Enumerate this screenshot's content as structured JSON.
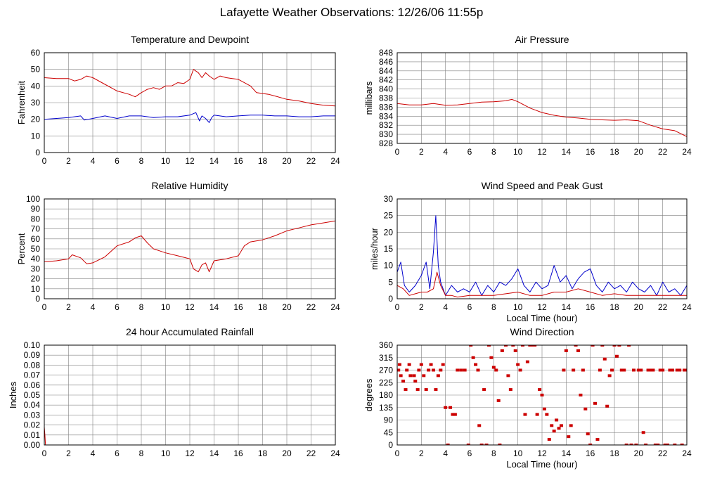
{
  "page": {
    "title": "Lafayette Weather Observations: 12/26/06 11:55p"
  },
  "colors": {
    "grid": "#808080",
    "frame": "#000000",
    "series_red": "#cc0000",
    "series_blue": "#0000cc"
  },
  "chart_data": [
    {
      "id": "temp",
      "type": "line",
      "title": "Temperature and Dewpoint",
      "xlabel": "",
      "ylabel": "Fahrenheit",
      "xlim": [
        0,
        24
      ],
      "ylim": [
        0,
        60
      ],
      "xticks": [
        0,
        2,
        4,
        6,
        8,
        10,
        12,
        14,
        16,
        18,
        20,
        22,
        24
      ],
      "yticks": [
        0,
        10,
        20,
        30,
        40,
        50,
        60
      ],
      "grid": true,
      "series": [
        {
          "color": "#cc0000",
          "x": [
            0,
            1,
            2,
            2.5,
            3,
            3.5,
            4,
            5,
            6,
            7,
            7.5,
            8,
            8.5,
            9,
            9.5,
            10,
            10.5,
            11,
            11.5,
            12,
            12.3,
            12.7,
            13,
            13.3,
            13.6,
            14,
            14.5,
            15,
            15.5,
            16,
            17,
            17.5,
            18,
            18.5,
            19,
            20,
            21,
            22,
            23,
            24
          ],
          "y": [
            45,
            44.5,
            44.5,
            43,
            44,
            46,
            45,
            41,
            37,
            35,
            33.5,
            36,
            38,
            39,
            38,
            40,
            40,
            42,
            41.5,
            44,
            50,
            48,
            45,
            48,
            46,
            44,
            46,
            45,
            44.5,
            44,
            40,
            36,
            35.5,
            35,
            34,
            32,
            31,
            29.5,
            28.5,
            28
          ]
        },
        {
          "color": "#0000cc",
          "x": [
            0,
            1,
            2,
            3,
            3.3,
            4,
            5,
            6,
            7,
            8,
            9,
            10,
            11,
            12,
            12.5,
            12.8,
            13,
            13.3,
            13.6,
            13.8,
            14,
            15,
            16,
            17,
            18,
            19,
            20,
            21,
            22,
            23,
            24
          ],
          "y": [
            20,
            20.5,
            21,
            22,
            19.5,
            20.5,
            22,
            20.5,
            22,
            22,
            21,
            21.5,
            21.5,
            22.5,
            24,
            19,
            22,
            20.5,
            18,
            21,
            22.5,
            21.5,
            22,
            22.5,
            22.5,
            22,
            22,
            21.5,
            21.5,
            22,
            22
          ]
        }
      ]
    },
    {
      "id": "pressure",
      "type": "line",
      "title": "Air Pressure",
      "xlabel": "",
      "ylabel": "millibars",
      "xlim": [
        0,
        24
      ],
      "ylim": [
        828,
        848
      ],
      "xticks": [
        0,
        2,
        4,
        6,
        8,
        10,
        12,
        14,
        16,
        18,
        20,
        22,
        24
      ],
      "yticks": [
        828,
        830,
        832,
        834,
        836,
        838,
        840,
        842,
        844,
        846,
        848
      ],
      "grid": true,
      "series": [
        {
          "color": "#cc0000",
          "x": [
            0,
            1,
            2,
            3,
            4,
            5,
            6,
            7,
            8,
            9,
            9.5,
            10,
            11,
            12,
            13,
            14,
            15,
            16,
            17,
            18,
            19,
            20,
            21,
            22,
            23,
            24
          ],
          "y": [
            836.8,
            836.5,
            836.5,
            836.8,
            836.4,
            836.5,
            836.8,
            837.1,
            837.2,
            837.4,
            837.7,
            837.2,
            835.8,
            834.8,
            834.2,
            833.8,
            833.6,
            833.3,
            833.2,
            833.1,
            833.2,
            833.0,
            832.0,
            831.2,
            830.8,
            829.5
          ]
        }
      ]
    },
    {
      "id": "humidity",
      "type": "line",
      "title": "Relative Humidity",
      "xlabel": "",
      "ylabel": "Percent",
      "xlim": [
        0,
        24
      ],
      "ylim": [
        0,
        100
      ],
      "xticks": [
        0,
        2,
        4,
        6,
        8,
        10,
        12,
        14,
        16,
        18,
        20,
        22,
        24
      ],
      "yticks": [
        0,
        10,
        20,
        30,
        40,
        50,
        60,
        70,
        80,
        90,
        100
      ],
      "grid": true,
      "series": [
        {
          "color": "#cc0000",
          "x": [
            0,
            1,
            2,
            2.3,
            3,
            3.5,
            4,
            5,
            6,
            7,
            7.5,
            8,
            8.5,
            9,
            9.5,
            10,
            11,
            12,
            12.3,
            12.7,
            13,
            13.3,
            13.6,
            14,
            15,
            16,
            16.5,
            17,
            18,
            19,
            20,
            21,
            22,
            23,
            24
          ],
          "y": [
            37,
            38,
            40,
            44,
            41,
            35,
            36,
            42,
            53,
            57,
            61,
            63,
            56,
            50,
            48,
            46,
            43,
            40,
            30,
            27,
            34,
            36,
            27,
            38,
            40,
            43,
            53,
            57,
            59,
            63,
            68,
            71,
            74,
            76,
            78
          ]
        }
      ]
    },
    {
      "id": "wind",
      "type": "line",
      "title": "Wind Speed and Peak Gust",
      "xlabel": "Local Time (hour)",
      "ylabel": "miles/hour",
      "xlim": [
        0,
        24
      ],
      "ylim": [
        0,
        30
      ],
      "xticks": [
        0,
        2,
        4,
        6,
        8,
        10,
        12,
        14,
        16,
        18,
        20,
        22,
        24
      ],
      "yticks": [
        0,
        5,
        10,
        15,
        20,
        25,
        30
      ],
      "grid": true,
      "series": [
        {
          "color": "#0000cc",
          "x": [
            0,
            0.3,
            0.6,
            1,
            1.5,
            2,
            2.4,
            2.7,
            3,
            3.2,
            3.4,
            3.6,
            4,
            4.5,
            5,
            5.5,
            6,
            6.5,
            7,
            7.5,
            8,
            8.5,
            9,
            9.5,
            10,
            10.5,
            11,
            11.5,
            12,
            12.5,
            13,
            13.5,
            14,
            14.5,
            15,
            15.5,
            16,
            16.5,
            17,
            17.5,
            18,
            18.5,
            19,
            19.5,
            20,
            20.5,
            21,
            21.5,
            22,
            22.5,
            23,
            23.5,
            24
          ],
          "y": [
            8,
            11,
            4,
            2,
            4,
            7,
            11,
            3,
            14,
            25,
            10,
            5,
            1,
            4,
            2,
            3,
            2,
            5,
            1,
            4,
            2,
            5,
            4,
            6,
            9,
            4,
            2,
            5,
            3,
            4,
            10,
            5,
            7,
            3,
            6,
            8,
            9,
            4,
            2,
            5,
            3,
            4,
            2,
            5,
            3,
            2,
            4,
            1,
            5,
            2,
            3,
            1,
            4
          ]
        },
        {
          "color": "#cc0000",
          "x": [
            0,
            0.5,
            1,
            1.5,
            2,
            2.5,
            3,
            3.3,
            3.6,
            4,
            4.5,
            5,
            6,
            7,
            8,
            9,
            10,
            11,
            12,
            13,
            14,
            15,
            16,
            17,
            18,
            19,
            20,
            21,
            22,
            23,
            24
          ],
          "y": [
            4,
            3,
            1,
            1.5,
            2,
            2,
            3,
            8,
            4,
            1,
            1,
            0.5,
            1,
            1,
            1,
            1.5,
            2,
            1,
            1,
            2,
            2,
            3,
            2,
            1,
            1.5,
            1,
            1,
            1,
            1,
            1,
            1
          ]
        }
      ]
    },
    {
      "id": "rain",
      "type": "line",
      "title": "24 hour Accumulated Rainfall",
      "xlabel": "",
      "ylabel": "Inches",
      "xlim": [
        0,
        24
      ],
      "ylim": [
        0,
        0.1
      ],
      "xticks": [
        0,
        2,
        4,
        6,
        8,
        10,
        12,
        14,
        16,
        18,
        20,
        22,
        24
      ],
      "yticks": [
        "0.00",
        "0.01",
        "0.02",
        "0.03",
        "0.04",
        "0.05",
        "0.06",
        "0.07",
        "0.08",
        "0.09",
        "0.10"
      ],
      "grid": true,
      "series": [
        {
          "color": "#cc0000",
          "x": [
            0,
            0.05,
            0.1,
            24
          ],
          "y": [
            0.018,
            0.01,
            0,
            0
          ]
        }
      ]
    },
    {
      "id": "direction",
      "type": "scatter",
      "title": "Wind Direction",
      "xlabel": "Local Time (hour)",
      "ylabel": "degrees",
      "xlim": [
        0,
        24
      ],
      "ylim": [
        0,
        360
      ],
      "xticks": [
        0,
        2,
        4,
        6,
        8,
        10,
        12,
        14,
        16,
        18,
        20,
        22,
        24
      ],
      "yticks": [
        0,
        45,
        90,
        135,
        180,
        225,
        270,
        315,
        360
      ],
      "grid": true,
      "series": [
        {
          "color": "#cc0000",
          "x": [
            0.1,
            0.2,
            0.3,
            0.5,
            0.7,
            0.8,
            1.0,
            1.1,
            1.4,
            1.5,
            1.7,
            1.8,
            2.0,
            2.2,
            2.4,
            2.6,
            2.8,
            3.0,
            3.2,
            3.4,
            3.6,
            3.8,
            4.0,
            4.2,
            4.4,
            4.6,
            4.8,
            5.0,
            5.3,
            5.6,
            5.9,
            6.1,
            6.3,
            6.5,
            6.7,
            6.8,
            7.0,
            7.2,
            7.4,
            7.6,
            7.8,
            8.0,
            8.2,
            8.4,
            8.5,
            8.7,
            9.0,
            9.2,
            9.4,
            9.6,
            9.8,
            10.0,
            10.2,
            10.4,
            10.6,
            10.8,
            11.0,
            11.2,
            11.4,
            11.6,
            11.8,
            12.0,
            12.2,
            12.4,
            12.6,
            12.8,
            13.0,
            13.2,
            13.4,
            13.6,
            13.8,
            14.0,
            14.2,
            14.4,
            14.6,
            14.8,
            15.0,
            15.2,
            15.4,
            15.6,
            15.8,
            16.0,
            16.2,
            16.4,
            16.6,
            16.8,
            17.0,
            17.2,
            17.4,
            17.6,
            17.8,
            18.0,
            18.2,
            18.4,
            18.6,
            18.8,
            19.0,
            19.2,
            19.4,
            19.6,
            19.8,
            20.0,
            20.2,
            20.4,
            20.6,
            20.8,
            21.0,
            21.2,
            21.4,
            21.6,
            21.8,
            22.0,
            22.2,
            22.4,
            22.6,
            22.8,
            23.0,
            23.2,
            23.4,
            23.6,
            23.8,
            24.0
          ],
          "y": [
            270,
            290,
            250,
            230,
            200,
            270,
            290,
            250,
            250,
            230,
            200,
            270,
            290,
            250,
            200,
            270,
            290,
            270,
            200,
            250,
            270,
            290,
            135,
            0,
            135,
            110,
            110,
            270,
            270,
            270,
            0,
            360,
            315,
            290,
            270,
            70,
            0,
            200,
            0,
            360,
            315,
            280,
            270,
            160,
            0,
            340,
            360,
            250,
            200,
            360,
            340,
            290,
            270,
            360,
            110,
            300,
            360,
            360,
            360,
            110,
            200,
            180,
            130,
            110,
            20,
            70,
            50,
            90,
            60,
            70,
            270,
            340,
            30,
            70,
            270,
            360,
            340,
            180,
            270,
            130,
            40,
            0,
            360,
            150,
            20,
            270,
            360,
            310,
            140,
            250,
            270,
            360,
            320,
            360,
            270,
            270,
            0,
            360,
            0,
            270,
            0,
            270,
            270,
            45,
            0,
            270,
            270,
            270,
            0,
            0,
            270,
            270,
            0,
            0,
            270,
            270,
            0,
            270,
            270,
            0,
            270,
            270
          ]
        }
      ]
    }
  ]
}
